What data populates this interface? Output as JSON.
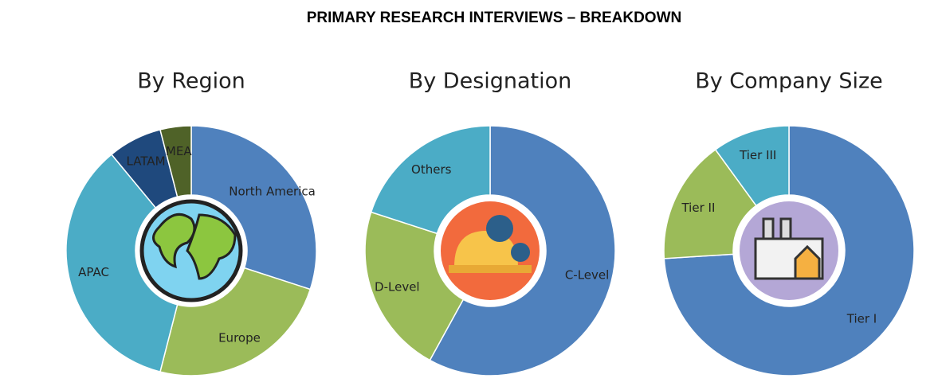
{
  "title": "PRIMARY RESEARCH INTERVIEWS – BREAKDOWN",
  "chart_data": [
    {
      "type": "pie",
      "title": "By Region",
      "categories": [
        "North America",
        "Europe",
        "APAC",
        "LATAM",
        "MEA"
      ],
      "values": [
        30,
        24,
        35,
        7,
        4
      ],
      "colors": [
        "#4f81bd",
        "#9bbb59",
        "#4bacc6",
        "#1f497d",
        "#4f6228"
      ]
    },
    {
      "type": "pie",
      "title": "By Designation",
      "categories": [
        "C-Level",
        "D-Level",
        "Others"
      ],
      "values": [
        58,
        22,
        20
      ],
      "colors": [
        "#4f81bd",
        "#9bbb59",
        "#4bacc6"
      ]
    },
    {
      "type": "pie",
      "title": "By Company Size",
      "categories": [
        "Tier I",
        "Tier II",
        "Tier III"
      ],
      "values": [
        74,
        16,
        10
      ],
      "colors": [
        "#4f81bd",
        "#9bbb59",
        "#4bacc6"
      ]
    }
  ]
}
